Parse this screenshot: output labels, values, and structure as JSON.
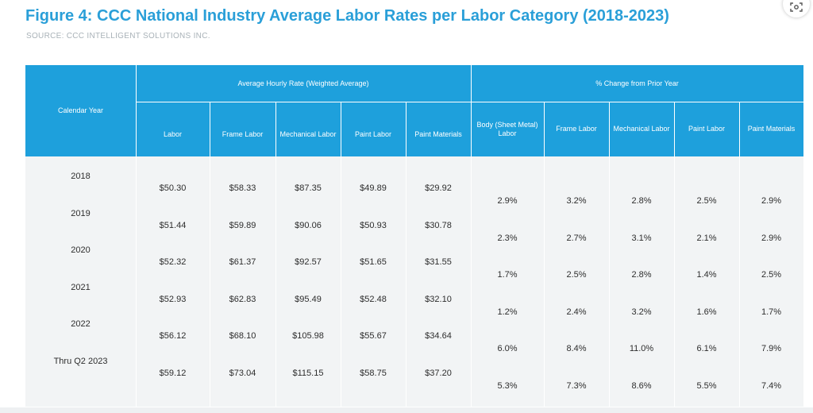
{
  "title": "Figure 4: CCC National Industry Average Labor Rates per Labor Category (2018-2023)",
  "source": "SOURCE: CCC INTELLIGENT SOLUTIONS INC.",
  "colors": {
    "title": "#2a9fd8",
    "header_bg": "#1ea0dc",
    "body_bg": "#f2f4f5",
    "text": "#2d2d2d"
  },
  "icon": "lens-scan-icon",
  "chart_data": {
    "type": "table",
    "title": "Figure 4: CCC National Industry Average Labor Rates per Labor Category (2018-2023)",
    "group_headers": [
      "Average Hourly Rate (Weighted Average)",
      "% Change from Prior Year"
    ],
    "year_header": "Calendar Year",
    "rate_columns": [
      "Labor",
      "Frame Labor",
      "Mechanical Labor",
      "Paint Labor",
      "Paint Materials"
    ],
    "change_columns": [
      "Body (Sheet Metal) Labor",
      "Frame Labor",
      "Mechanical Labor",
      "Paint Labor",
      "Paint Materials"
    ],
    "years": [
      "2018",
      "2019",
      "2020",
      "2021",
      "2022",
      "Thru Q2 2023"
    ],
    "rates": [
      [
        "$50.30",
        "$58.33",
        "$87.35",
        "$49.89",
        "$29.92"
      ],
      [
        "$51.44",
        "$59.89",
        "$90.06",
        "$50.93",
        "$30.78"
      ],
      [
        "$52.32",
        "$61.37",
        "$92.57",
        "$51.65",
        "$31.55"
      ],
      [
        "$52.93",
        "$62.83",
        "$95.49",
        "$52.48",
        "$32.10"
      ],
      [
        "$56.12",
        "$68.10",
        "$105.98",
        "$55.67",
        "$34.64"
      ],
      [
        "$59.12",
        "$73.04",
        "$115.15",
        "$58.75",
        "$37.20"
      ]
    ],
    "changes": [
      [
        "2.9%",
        "3.2%",
        "2.8%",
        "2.5%",
        "2.9%"
      ],
      [
        "2.3%",
        "2.7%",
        "3.1%",
        "2.1%",
        "2.9%"
      ],
      [
        "1.7%",
        "2.5%",
        "2.8%",
        "1.4%",
        "2.5%"
      ],
      [
        "1.2%",
        "2.4%",
        "3.2%",
        "1.6%",
        "1.7%"
      ],
      [
        "6.0%",
        "8.4%",
        "11.0%",
        "6.1%",
        "7.9%"
      ],
      [
        "5.3%",
        "7.3%",
        "8.6%",
        "5.5%",
        "7.4%"
      ]
    ]
  }
}
